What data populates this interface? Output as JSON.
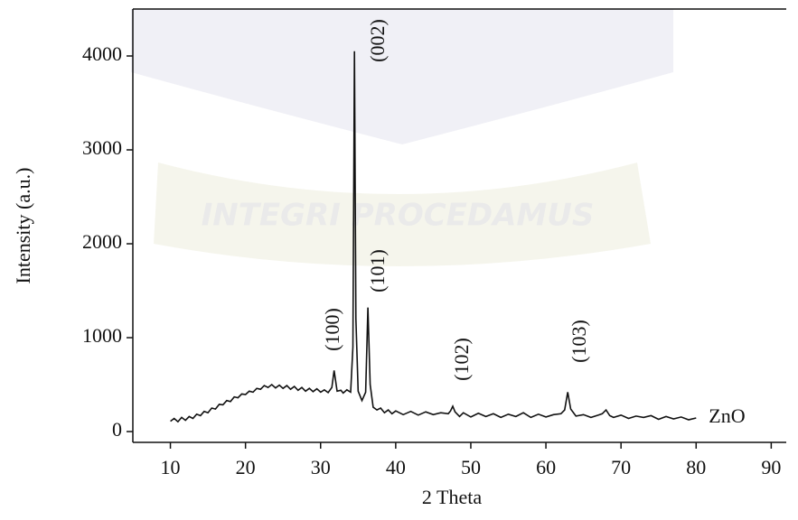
{
  "chart_data": {
    "type": "line",
    "watermark": "INTEGRI PROCEDAMUS",
    "x_label": "2 Theta",
    "y_label": "Intensity (a.u.)",
    "xlim": [
      5,
      92
    ],
    "ylim": [
      -115,
      4500
    ],
    "xticks": [
      10,
      20,
      30,
      40,
      50,
      60,
      70,
      80,
      90
    ],
    "yticks": [
      0,
      1000,
      2000,
      3000,
      4000
    ],
    "annotations": [
      "(100)",
      "(002)",
      "(101)",
      "(102)",
      "(103)"
    ],
    "series": [
      {
        "name": "ZnO",
        "color": "#111111",
        "x": [
          10,
          10.5,
          11,
          11.5,
          12,
          12.5,
          13,
          13.5,
          14,
          14.5,
          15,
          15.5,
          16,
          16.5,
          17,
          17.5,
          18,
          18.5,
          19,
          19.5,
          20,
          20.5,
          21,
          21.5,
          22,
          22.5,
          23,
          23.5,
          24,
          24.5,
          25,
          25.5,
          26,
          26.5,
          27,
          27.5,
          28,
          28.5,
          29,
          29.5,
          30,
          30.5,
          31,
          31.5,
          31.8,
          32.2,
          32.7,
          33,
          33.5,
          34,
          34.3,
          34.5,
          34.7,
          35,
          35.5,
          36,
          36.3,
          36.6,
          37,
          37.5,
          38,
          38.5,
          39,
          39.5,
          40,
          41,
          42,
          43,
          44,
          45,
          46,
          47,
          47.3,
          47.6,
          47.9,
          48.5,
          49,
          50,
          51,
          52,
          53,
          54,
          55,
          56,
          57,
          58,
          59,
          60,
          61,
          62,
          62.5,
          62.9,
          63.3,
          64,
          65,
          66,
          67,
          67.5,
          68,
          68.5,
          69,
          70,
          71,
          72,
          73,
          74,
          75,
          76,
          77,
          78,
          79,
          80
        ],
        "values": [
          110,
          140,
          105,
          150,
          120,
          160,
          140,
          185,
          170,
          215,
          200,
          250,
          240,
          290,
          285,
          330,
          320,
          370,
          360,
          400,
          395,
          430,
          420,
          460,
          450,
          490,
          470,
          500,
          465,
          495,
          460,
          490,
          450,
          480,
          440,
          470,
          430,
          460,
          425,
          455,
          420,
          445,
          415,
          470,
          650,
          430,
          440,
          410,
          445,
          420,
          900,
          4050,
          1200,
          430,
          330,
          420,
          1320,
          500,
          260,
          230,
          250,
          200,
          230,
          190,
          220,
          180,
          215,
          175,
          210,
          180,
          200,
          190,
          220,
          270,
          210,
          160,
          200,
          155,
          195,
          160,
          190,
          150,
          185,
          160,
          200,
          150,
          185,
          155,
          180,
          190,
          230,
          420,
          240,
          165,
          180,
          150,
          175,
          190,
          230,
          170,
          150,
          175,
          140,
          165,
          150,
          170,
          130,
          160,
          135,
          155,
          125,
          145
        ]
      }
    ]
  }
}
